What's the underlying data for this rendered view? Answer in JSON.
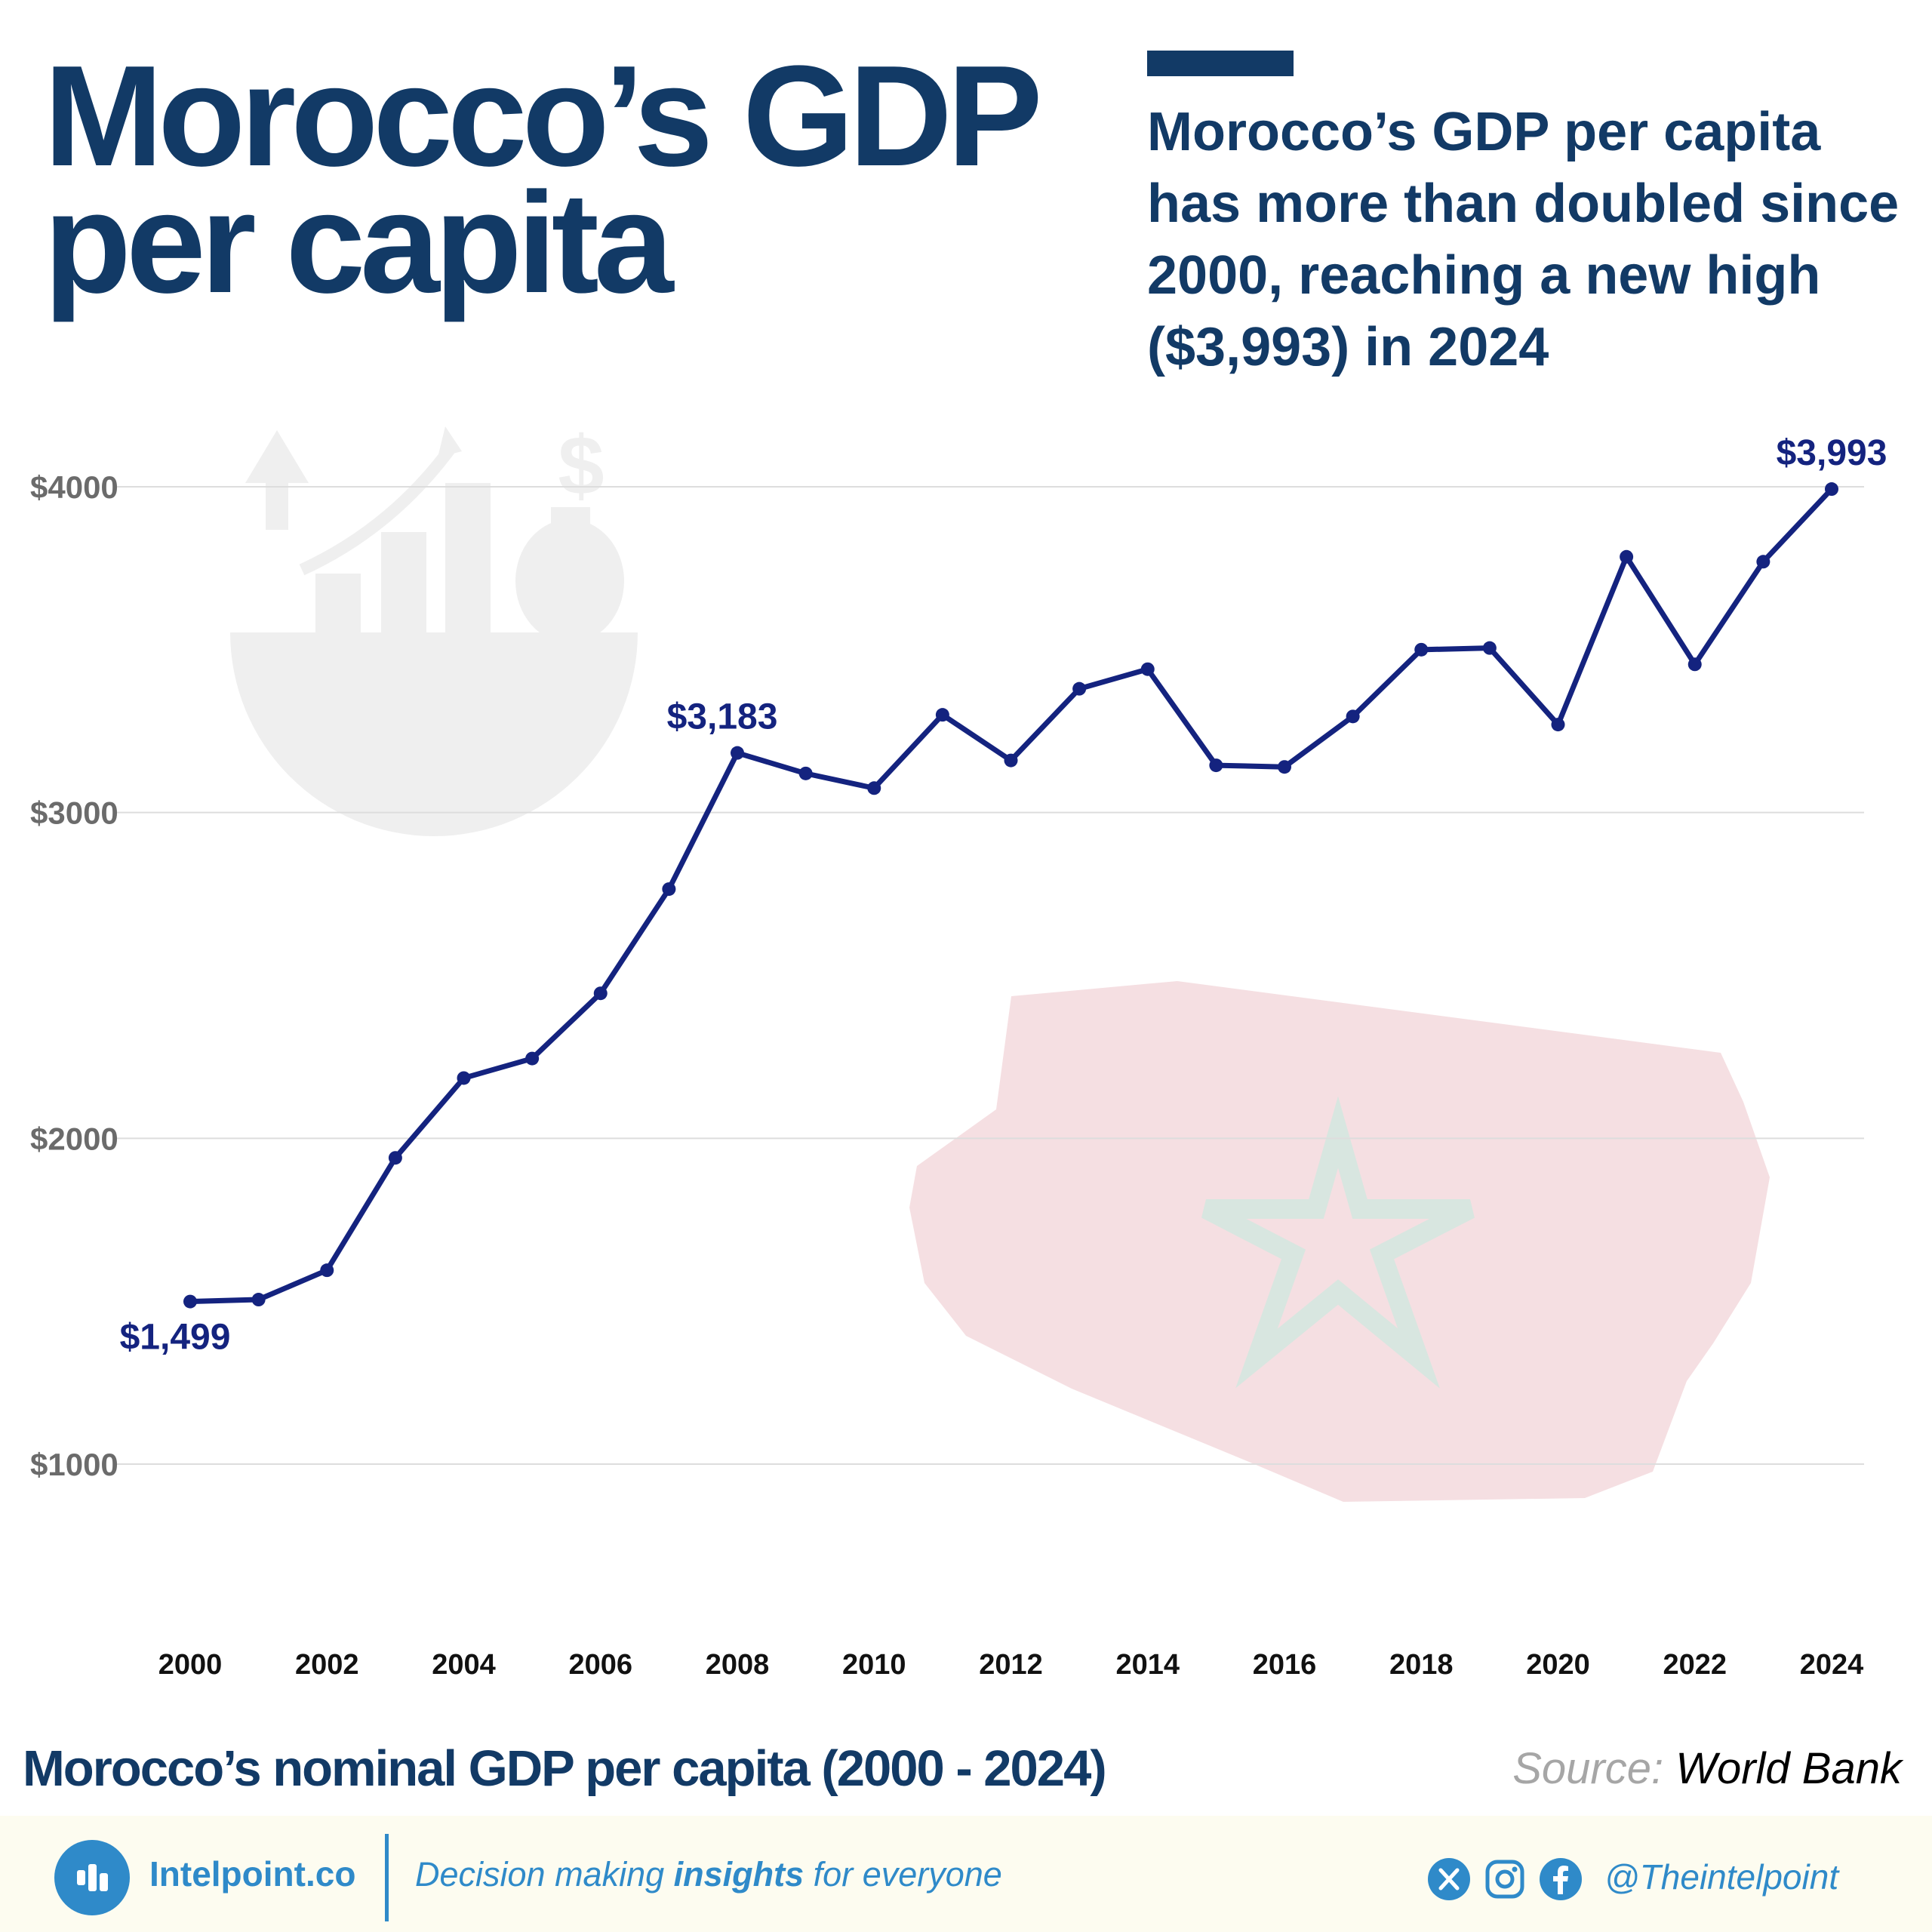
{
  "header": {
    "title_line1": "Morocco’s GDP",
    "title_line2": "per capita",
    "subtitle": "Morocco’s GDP per capita has more than doubled since 2000, reaching a new high ($3,993) in 2024"
  },
  "chart_data": {
    "type": "line",
    "title": "Morocco’s nominal GDP per capita (2000 - 2024)",
    "xlabel": "",
    "ylabel": "",
    "x": [
      2000,
      2001,
      2002,
      2003,
      2004,
      2005,
      2006,
      2007,
      2008,
      2009,
      2010,
      2011,
      2012,
      2013,
      2014,
      2015,
      2016,
      2017,
      2018,
      2019,
      2020,
      2021,
      2022,
      2023,
      2024
    ],
    "series": [
      {
        "name": "",
        "values": [
          1499,
          1505,
          1595,
          1940,
          2185,
          2245,
          2445,
          2765,
          3183,
          3120,
          3075,
          3300,
          3160,
          3380,
          3440,
          3145,
          3140,
          3295,
          3500,
          3505,
          3270,
          3785,
          3455,
          3770,
          3993
        ]
      }
    ],
    "yticks": [
      1000,
      2000,
      3000,
      4000
    ],
    "ytick_labels": [
      "$1000",
      "$2000",
      "$3000",
      "$4000"
    ],
    "xticks": [
      2000,
      2002,
      2004,
      2006,
      2008,
      2010,
      2012,
      2014,
      2016,
      2018,
      2020,
      2022,
      2024
    ],
    "xtick_labels": [
      "2000",
      "2002",
      "2004",
      "2006",
      "2008",
      "2010",
      "2012",
      "2014",
      "2016",
      "2018",
      "2020",
      "2022",
      "2024"
    ],
    "ylim": [
      500,
      4200
    ],
    "xlim": [
      2000,
      2024
    ],
    "grid": true,
    "line_color": "#14237f",
    "annotations": [
      {
        "x": 2000,
        "y": 1499,
        "text": "$1,499",
        "position": "below"
      },
      {
        "x": 2008,
        "y": 3183,
        "text": "$3,183",
        "position": "above"
      },
      {
        "x": 2024,
        "y": 3993,
        "text": "$3,993",
        "position": "above"
      }
    ]
  },
  "source": {
    "label": "Source:",
    "value": "World Bank"
  },
  "footer": {
    "brand": "Intelpoint.co",
    "tagline_before": "Decision making ",
    "tagline_bold": "insights",
    "tagline_after": " for everyone",
    "handle": "@Theintelpoint",
    "social_icons": [
      "x-icon",
      "instagram-icon",
      "facebook-icon"
    ]
  },
  "colors": {
    "title": "#123a66",
    "line": "#14237f",
    "annotation": "#14237f",
    "axis_tick": "#6b6b6b",
    "grid": "#dddddd",
    "brand": "#2f8ac9",
    "footer_background": "#fdfcf0"
  }
}
